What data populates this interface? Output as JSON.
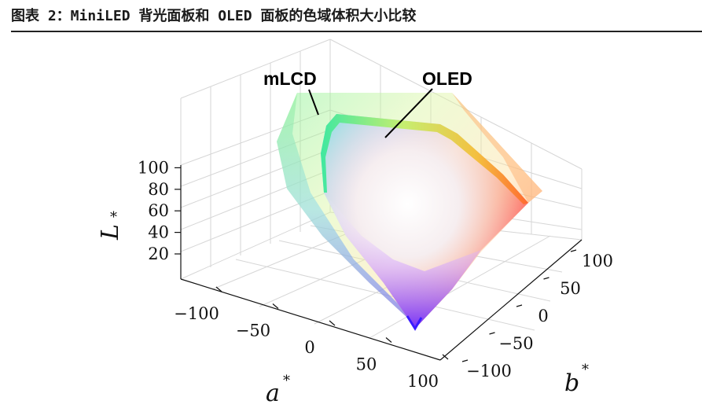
{
  "figure": {
    "title": "图表 2：MiniLED 背光面板和 OLED 面板的色域体积大小比较"
  },
  "chart_data": {
    "type": "3d-gamut-volume",
    "series": [
      {
        "name": "mLCD",
        "label": "mLCD"
      },
      {
        "name": "OLED",
        "label": "OLED"
      }
    ],
    "axes": {
      "a": {
        "label": "a",
        "superscript": "*",
        "ticks": [
          "−100",
          "−50",
          "0",
          "50",
          "100"
        ],
        "range": [
          -100,
          100
        ]
      },
      "b": {
        "label": "b",
        "superscript": "*",
        "ticks": [
          "−100",
          "−50",
          "0",
          "50",
          "100"
        ],
        "range": [
          -100,
          100
        ]
      },
      "L": {
        "label": "L",
        "superscript": "*",
        "ticks": [
          "20",
          "40",
          "60",
          "80",
          "100"
        ],
        "range": [
          0,
          100
        ]
      }
    },
    "grid": true
  }
}
